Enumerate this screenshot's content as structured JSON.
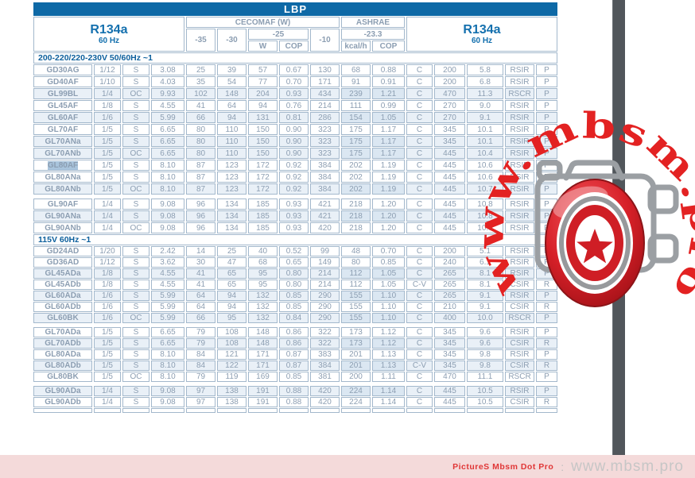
{
  "page": {
    "colors": {
      "header_blue": "#0e69a6",
      "header_text_blue": "#1470ae",
      "grid_line": "#a3b8cc",
      "data_text": "#8c9eb2",
      "alt_row_bg": "#e9f0f7",
      "ashrae_col_bg": "#e3edf6",
      "selection_highlight": "#a9c4dc",
      "watermark_red": "#e32222",
      "camera_gray": "#9b9fa3",
      "strip_gray": "#51565b",
      "footer_bg": "#f4dada",
      "footer_brand_red": "#e03636",
      "footer_site_gray": "#c6c6c6"
    },
    "watermark": {
      "arc_text": "www.mbsm.pro",
      "camera_icon": "camera-with-star-badge"
    },
    "footer": {
      "brand": "PictureS Mbsm Dot Pro",
      "separator": ":",
      "site": "www.mbsm.pro"
    }
  },
  "table": {
    "title": "LBP",
    "left_header": {
      "refrigerant": "R134a",
      "frequency": "60 Hz"
    },
    "right_header": {
      "refrigerant": "R134a",
      "frequency": "60 Hz"
    },
    "cecomaf": {
      "label": "CECOMAF (W)",
      "temp_minus35": "-35",
      "temp_minus30": "-30",
      "temp_minus25": "-25",
      "temp_minus10": "-10",
      "sub_w": "W",
      "sub_cop": "COP"
    },
    "ashrae": {
      "label": "ASHRAE",
      "temp": "-23.3",
      "sub_kcalh": "kcal/h",
      "sub_cop": "COP"
    },
    "sections": [
      {
        "header": "200-220/220-230V 50/60Hz ~1",
        "rows": [
          {
            "model": "GD30AG",
            "hp": "1/12",
            "sc": "S",
            "disp": "3.08",
            "m35": "25",
            "m30": "39",
            "w": "57",
            "cop": "0.67",
            "m10": "130",
            "kcal": "68",
            "acop": "0.88",
            "c": "C",
            "v1": "200",
            "v2": "5.8",
            "motor": "RSIR",
            "p": "P",
            "alt": false,
            "gap": false,
            "selected": false
          },
          {
            "model": "GD40AF",
            "hp": "1/10",
            "sc": "S",
            "disp": "4.03",
            "m35": "35",
            "m30": "54",
            "w": "77",
            "cop": "0.70",
            "m10": "171",
            "kcal": "91",
            "acop": "0.91",
            "c": "C",
            "v1": "200",
            "v2": "6.8",
            "motor": "RSIR",
            "p": "P",
            "alt": false,
            "gap": false,
            "selected": false
          },
          {
            "model": "GL99BL",
            "hp": "1/4",
            "sc": "OC",
            "disp": "9.93",
            "m35": "102",
            "m30": "148",
            "w": "204",
            "cop": "0.93",
            "m10": "434",
            "kcal": "239",
            "acop": "1.21",
            "c": "C",
            "v1": "470",
            "v2": "11.3",
            "motor": "RSCR",
            "p": "P",
            "alt": true,
            "gap": false,
            "selected": false
          },
          {
            "model": "GL45AF",
            "hp": "1/8",
            "sc": "S",
            "disp": "4.55",
            "m35": "41",
            "m30": "64",
            "w": "94",
            "cop": "0.76",
            "m10": "214",
            "kcal": "111",
            "acop": "0.99",
            "c": "C",
            "v1": "270",
            "v2": "9.0",
            "motor": "RSIR",
            "p": "P",
            "alt": false,
            "gap": false,
            "selected": false
          },
          {
            "model": "GL60AF",
            "hp": "1/6",
            "sc": "S",
            "disp": "5.99",
            "m35": "66",
            "m30": "94",
            "w": "131",
            "cop": "0.81",
            "m10": "286",
            "kcal": "154",
            "acop": "1.05",
            "c": "C",
            "v1": "270",
            "v2": "9.1",
            "motor": "RSIR",
            "p": "P",
            "alt": true,
            "gap": false,
            "selected": false
          },
          {
            "model": "GL70AF",
            "hp": "1/5",
            "sc": "S",
            "disp": "6.65",
            "m35": "80",
            "m30": "110",
            "w": "150",
            "cop": "0.90",
            "m10": "323",
            "kcal": "175",
            "acop": "1.17",
            "c": "C",
            "v1": "345",
            "v2": "10.1",
            "motor": "RSIR",
            "p": "P",
            "alt": false,
            "gap": false,
            "selected": false
          },
          {
            "model": "GL70ANa",
            "hp": "1/5",
            "sc": "S",
            "disp": "6.65",
            "m35": "80",
            "m30": "110",
            "w": "150",
            "cop": "0.90",
            "m10": "323",
            "kcal": "175",
            "acop": "1.17",
            "c": "C",
            "v1": "345",
            "v2": "10.1",
            "motor": "RSIR",
            "p": "P",
            "alt": true,
            "gap": false,
            "selected": false
          },
          {
            "model": "GL70ANb",
            "hp": "1/5",
            "sc": "OC",
            "disp": "6.65",
            "m35": "80",
            "m30": "110",
            "w": "150",
            "cop": "0.90",
            "m10": "323",
            "kcal": "175",
            "acop": "1.17",
            "c": "C",
            "v1": "445",
            "v2": "10.4",
            "motor": "RSIR",
            "p": "P",
            "alt": true,
            "gap": false,
            "selected": false
          },
          {
            "model": "GL80AF",
            "hp": "1/5",
            "sc": "S",
            "disp": "8.10",
            "m35": "87",
            "m30": "123",
            "w": "172",
            "cop": "0.92",
            "m10": "384",
            "kcal": "202",
            "acop": "1.19",
            "c": "C",
            "v1": "445",
            "v2": "10.6",
            "motor": "RSIR",
            "p": "P",
            "alt": false,
            "gap": false,
            "selected": true
          },
          {
            "model": "GL80ANa",
            "hp": "1/5",
            "sc": "S",
            "disp": "8.10",
            "m35": "87",
            "m30": "123",
            "w": "172",
            "cop": "0.92",
            "m10": "384",
            "kcal": "202",
            "acop": "1.19",
            "c": "C",
            "v1": "445",
            "v2": "10.6",
            "motor": "RSIR",
            "p": "P",
            "alt": false,
            "gap": false,
            "selected": false
          },
          {
            "model": "GL80ANb",
            "hp": "1/5",
            "sc": "OC",
            "disp": "8.10",
            "m35": "87",
            "m30": "123",
            "w": "172",
            "cop": "0.92",
            "m10": "384",
            "kcal": "202",
            "acop": "1.19",
            "c": "C",
            "v1": "445",
            "v2": "10.7",
            "motor": "RSIR",
            "p": "P",
            "alt": true,
            "gap": false,
            "selected": false
          },
          {
            "model": "GL90AF",
            "hp": "1/4",
            "sc": "S",
            "disp": "9.08",
            "m35": "96",
            "m30": "134",
            "w": "185",
            "cop": "0.93",
            "m10": "421",
            "kcal": "218",
            "acop": "1.20",
            "c": "C",
            "v1": "445",
            "v2": "10.8",
            "motor": "RSIR",
            "p": "P",
            "alt": false,
            "gap": true,
            "selected": false
          },
          {
            "model": "GL90ANa",
            "hp": "1/4",
            "sc": "S",
            "disp": "9.08",
            "m35": "96",
            "m30": "134",
            "w": "185",
            "cop": "0.93",
            "m10": "421",
            "kcal": "218",
            "acop": "1.20",
            "c": "C",
            "v1": "445",
            "v2": "10.8",
            "motor": "RSIR",
            "p": "P",
            "alt": true,
            "gap": false,
            "selected": false
          },
          {
            "model": "GL90ANb",
            "hp": "1/4",
            "sc": "OC",
            "disp": "9.08",
            "m35": "96",
            "m30": "134",
            "w": "185",
            "cop": "0.93",
            "m10": "420",
            "kcal": "218",
            "acop": "1.20",
            "c": "C",
            "v1": "445",
            "v2": "10.9",
            "motor": "RSIR",
            "p": "P",
            "alt": false,
            "gap": false,
            "selected": false
          }
        ]
      },
      {
        "header": "115V 60Hz ~1",
        "rows": [
          {
            "model": "GD24AD",
            "hp": "1/20",
            "sc": "S",
            "disp": "2.42",
            "m35": "14",
            "m30": "25",
            "w": "40",
            "cop": "0.52",
            "m10": "99",
            "kcal": "48",
            "acop": "0.70",
            "c": "C",
            "v1": "200",
            "v2": "5.1",
            "motor": "RSIR",
            "p": "P",
            "alt": false,
            "gap": false,
            "selected": false
          },
          {
            "model": "GD36AD",
            "hp": "1/12",
            "sc": "S",
            "disp": "3.62",
            "m35": "30",
            "m30": "47",
            "w": "68",
            "cop": "0.65",
            "m10": "149",
            "kcal": "80",
            "acop": "0.85",
            "c": "C",
            "v1": "240",
            "v2": "6.1",
            "motor": "RSIR",
            "p": "P",
            "alt": false,
            "gap": false,
            "selected": false
          },
          {
            "model": "GL45ADa",
            "hp": "1/8",
            "sc": "S",
            "disp": "4.55",
            "m35": "41",
            "m30": "65",
            "w": "95",
            "cop": "0.80",
            "m10": "214",
            "kcal": "112",
            "acop": "1.05",
            "c": "C",
            "v1": "265",
            "v2": "8.1",
            "motor": "RSIR",
            "p": "P",
            "alt": true,
            "gap": false,
            "selected": false
          },
          {
            "model": "GL45ADb",
            "hp": "1/8",
            "sc": "S",
            "disp": "4.55",
            "m35": "41",
            "m30": "65",
            "w": "95",
            "cop": "0.80",
            "m10": "214",
            "kcal": "112",
            "acop": "1.05",
            "c": "C-V",
            "v1": "265",
            "v2": "8.1",
            "motor": "CSIR",
            "p": "R",
            "alt": false,
            "gap": false,
            "selected": false
          },
          {
            "model": "GL60ADa",
            "hp": "1/6",
            "sc": "S",
            "disp": "5.99",
            "m35": "64",
            "m30": "94",
            "w": "132",
            "cop": "0.85",
            "m10": "290",
            "kcal": "155",
            "acop": "1.10",
            "c": "C",
            "v1": "265",
            "v2": "9.1",
            "motor": "RSIR",
            "p": "P",
            "alt": true,
            "gap": false,
            "selected": false
          },
          {
            "model": "GL60ADb",
            "hp": "1/6",
            "sc": "S",
            "disp": "5.99",
            "m35": "64",
            "m30": "94",
            "w": "132",
            "cop": "0.85",
            "m10": "290",
            "kcal": "155",
            "acop": "1.10",
            "c": "C",
            "v1": "210",
            "v2": "9.1",
            "motor": "CSIR",
            "p": "R",
            "alt": false,
            "gap": false,
            "selected": false
          },
          {
            "model": "GL60BK",
            "hp": "1/6",
            "sc": "OC",
            "disp": "5.99",
            "m35": "66",
            "m30": "95",
            "w": "132",
            "cop": "0.84",
            "m10": "290",
            "kcal": "155",
            "acop": "1.10",
            "c": "C",
            "v1": "400",
            "v2": "10.0",
            "motor": "RSCR",
            "p": "P",
            "alt": true,
            "gap": false,
            "selected": false
          },
          {
            "model": "GL70ADa",
            "hp": "1/5",
            "sc": "S",
            "disp": "6.65",
            "m35": "79",
            "m30": "108",
            "w": "148",
            "cop": "0.86",
            "m10": "322",
            "kcal": "173",
            "acop": "1.12",
            "c": "C",
            "v1": "345",
            "v2": "9.6",
            "motor": "RSIR",
            "p": "P",
            "alt": false,
            "gap": true,
            "selected": false
          },
          {
            "model": "GL70ADb",
            "hp": "1/5",
            "sc": "S",
            "disp": "6.65",
            "m35": "79",
            "m30": "108",
            "w": "148",
            "cop": "0.86",
            "m10": "322",
            "kcal": "173",
            "acop": "1.12",
            "c": "C",
            "v1": "345",
            "v2": "9.6",
            "motor": "CSIR",
            "p": "R",
            "alt": true,
            "gap": false,
            "selected": false
          },
          {
            "model": "GL80ADa",
            "hp": "1/5",
            "sc": "S",
            "disp": "8.10",
            "m35": "84",
            "m30": "121",
            "w": "171",
            "cop": "0.87",
            "m10": "383",
            "kcal": "201",
            "acop": "1.13",
            "c": "C",
            "v1": "345",
            "v2": "9.8",
            "motor": "RSIR",
            "p": "P",
            "alt": false,
            "gap": false,
            "selected": false
          },
          {
            "model": "GL80ADb",
            "hp": "1/5",
            "sc": "S",
            "disp": "8.10",
            "m35": "84",
            "m30": "122",
            "w": "171",
            "cop": "0.87",
            "m10": "384",
            "kcal": "201",
            "acop": "1.13",
            "c": "C-V",
            "v1": "345",
            "v2": "9.8",
            "motor": "CSIR",
            "p": "R",
            "alt": true,
            "gap": false,
            "selected": false
          },
          {
            "model": "GL80BK",
            "hp": "1/5",
            "sc": "OC",
            "disp": "8.10",
            "m35": "79",
            "m30": "119",
            "w": "169",
            "cop": "0.85",
            "m10": "381",
            "kcal": "200",
            "acop": "1.11",
            "c": "C",
            "v1": "470",
            "v2": "11.1",
            "motor": "RSCR",
            "p": "P",
            "alt": false,
            "gap": false,
            "selected": false
          },
          {
            "model": "GL90ADa",
            "hp": "1/4",
            "sc": "S",
            "disp": "9.08",
            "m35": "97",
            "m30": "138",
            "w": "191",
            "cop": "0.88",
            "m10": "420",
            "kcal": "224",
            "acop": "1.14",
            "c": "C",
            "v1": "445",
            "v2": "10.5",
            "motor": "RSIR",
            "p": "P",
            "alt": true,
            "gap": true,
            "selected": false
          },
          {
            "model": "GL90ADb",
            "hp": "1/4",
            "sc": "S",
            "disp": "9.08",
            "m35": "97",
            "m30": "138",
            "w": "191",
            "cop": "0.88",
            "m10": "420",
            "kcal": "224",
            "acop": "1.14",
            "c": "C",
            "v1": "445",
            "v2": "10.5",
            "motor": "CSIR",
            "p": "R",
            "alt": false,
            "gap": false,
            "selected": false
          }
        ]
      }
    ]
  }
}
